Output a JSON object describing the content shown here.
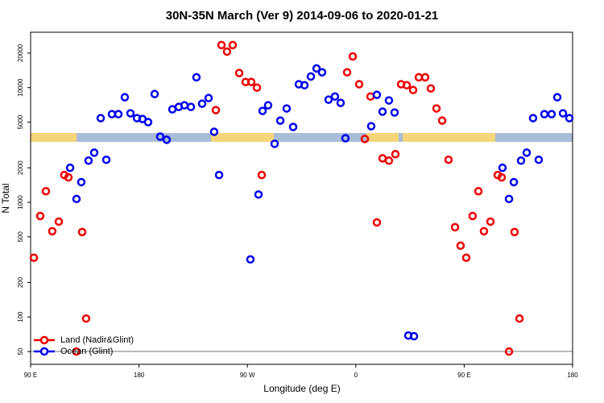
{
  "chart_data": {
    "type": "scatter",
    "title": "30N-35N March (Ver 9)   2014-09-06 to 2020-01-21",
    "x_label": "Longitude (deg E)",
    "y_label": "N Total",
    "log_y": true,
    "legend": "bottomleft",
    "xlim": [
      90,
      540
    ],
    "xticks": [
      {
        "value": 90,
        "label": "90 E"
      },
      {
        "value": 180,
        "label": "180"
      },
      {
        "value": 270,
        "label": "90 W"
      },
      {
        "value": 360,
        "label": "0"
      },
      {
        "value": 450,
        "label": "90 E"
      },
      {
        "value": 540,
        "label": "180"
      }
    ],
    "ylim": [
      38.7,
      30400
    ],
    "yticks": [
      50,
      100,
      200,
      500,
      1000,
      2000,
      5000,
      10000,
      20000
    ],
    "series": [
      {
        "name": "Land (Nadir&Glint)",
        "color": "#ee0000",
        "x": [
          92.7,
          98,
          102.7,
          108,
          113.4,
          118,
          121.4,
          128,
          132.8,
          136.1,
          243.8,
          248.5,
          253.1,
          257.8,
          263.2,
          268.5,
          273.2,
          277.9,
          281.9,
          352.8,
          357.5,
          362.8,
          367.5,
          372.2,
          377.5,
          382.2,
          387.5,
          392.9,
          397.6,
          402.3,
          407.6,
          412.3,
          417.6,
          422.3,
          427,
          431.7,
          437,
          442.4,
          447,
          451.7,
          457,
          461.8,
          466.4,
          471.8,
          477.8,
          481.1,
          487.2,
          491.8,
          495.9
        ],
        "values": [
          329,
          760,
          1250,
          560,
          679,
          1730,
          1650,
          50,
          551,
          97,
          6370,
          23500,
          20600,
          23500,
          13400,
          11200,
          11200,
          10000,
          1730,
          13600,
          18700,
          10700,
          3570,
          8370,
          668,
          2420,
          2310,
          2630,
          10700,
          10500,
          9530,
          12300,
          12300,
          9840,
          6580,
          5160,
          2350,
          607,
          419,
          329,
          760,
          1250,
          560,
          679,
          1730,
          1650,
          50,
          551,
          97
        ]
      },
      {
        "name": "Ocean (Glint)",
        "color": "#0000ee",
        "x": [
          122.8,
          128.1,
          132.1,
          138.1,
          142.8,
          148.2,
          152.9,
          157.5,
          162.9,
          168.2,
          172.9,
          178.3,
          182.9,
          187.6,
          193,
          197.6,
          203,
          207.7,
          213,
          217.7,
          223.1,
          227.7,
          232.4,
          237.8,
          242.4,
          246.5,
          272.5,
          279.2,
          282.6,
          287.2,
          292.6,
          297.3,
          302.6,
          308,
          312.7,
          317.4,
          322.7,
          327.4,
          332,
          337.4,
          342.7,
          347.4,
          351.4,
          372.8,
          377.5,
          382.2,
          387.5,
          392.2,
          403.6,
          408.3,
          481.8,
          487.2,
          491.2,
          497.2,
          501.9,
          507.2,
          511.9,
          516.6,
          522.6,
          527.3,
          532,
          537.3
        ],
        "values": [
          2000,
          1070,
          1500,
          2310,
          2710,
          5420,
          2350,
          5870,
          5870,
          8240,
          5970,
          5420,
          5330,
          5000,
          8790,
          3740,
          3510,
          6470,
          6790,
          7010,
          6790,
          12300,
          7240,
          8110,
          4120,
          1730,
          318,
          1170,
          6270,
          7010,
          3240,
          5160,
          6580,
          4540,
          10700,
          10500,
          12500,
          14700,
          13600,
          7850,
          8370,
          7360,
          3620,
          4610,
          8650,
          6170,
          7730,
          6070,
          69,
          68,
          2000,
          1070,
          1500,
          2310,
          2710,
          5420,
          2350,
          5870,
          5870,
          8240,
          5970,
          5420
        ]
      }
    ]
  }
}
